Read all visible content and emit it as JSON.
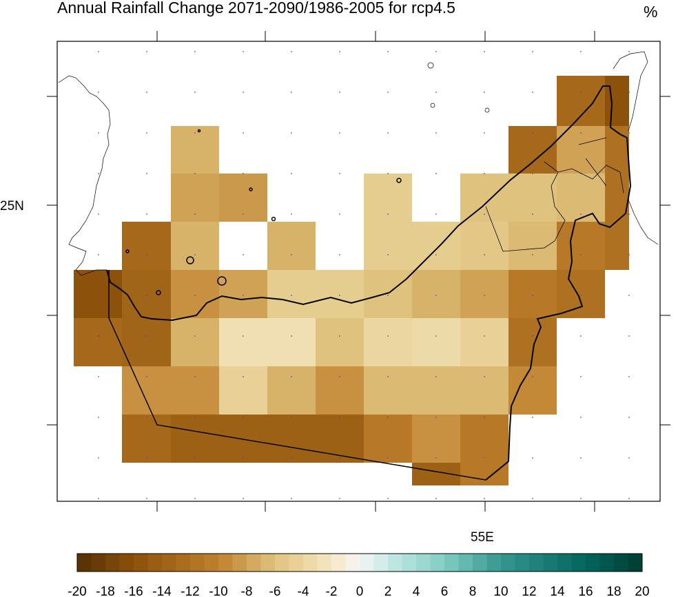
{
  "chart_data": {
    "type": "heatmap",
    "title": "Annual Rainfall Change 2071-2090/1986-2005 for rcp4.5",
    "units": "%",
    "axis_labels": {
      "lat": "25N",
      "lon": "55E"
    },
    "colorbar": {
      "min": -20,
      "max": 20,
      "tick_labels": [
        "-20",
        "-18",
        "-16",
        "-14",
        "-12",
        "-10",
        "-8",
        "-6",
        "-4",
        "-2",
        "0",
        "2",
        "4",
        "6",
        "8",
        "10",
        "12",
        "14",
        "16",
        "18",
        "20"
      ],
      "colors": [
        {
          "v": -20,
          "c": "#543005"
        },
        {
          "v": -16,
          "c": "#8c510a"
        },
        {
          "v": -10,
          "c": "#bf812d"
        },
        {
          "v": -6,
          "c": "#dfc27d"
        },
        {
          "v": -2,
          "c": "#f6e8c3"
        },
        {
          "v": 0,
          "c": "#f5f5f5"
        },
        {
          "v": 2,
          "c": "#c7eae5"
        },
        {
          "v": 6,
          "c": "#80cdc1"
        },
        {
          "v": 10,
          "c": "#35978f"
        },
        {
          "v": 16,
          "c": "#01665e"
        },
        {
          "v": 20,
          "c": "#003c30"
        }
      ]
    },
    "grid_values": [
      [
        null,
        null,
        null,
        null,
        null,
        null,
        null,
        null,
        null,
        null,
        -13,
        -16
      ],
      [
        null,
        null,
        -7,
        null,
        null,
        null,
        null,
        null,
        null,
        -13,
        -8,
        -12
      ],
      [
        null,
        null,
        -8,
        -8.5,
        null,
        null,
        -5,
        null,
        -6,
        -6,
        -6.5,
        -12
      ],
      [
        null,
        -13,
        -7,
        null,
        -7,
        null,
        -5,
        -5,
        -5.5,
        -6.5,
        -11,
        -12
      ],
      [
        -16,
        -13.5,
        -9,
        -8,
        -5,
        -5,
        -6,
        -7,
        -8,
        -11,
        -12,
        null
      ],
      [
        -13,
        -13.5,
        -7,
        -3,
        -3,
        -6,
        -4,
        -3.5,
        -4.5,
        -12,
        null,
        null
      ],
      [
        null,
        -9,
        -9,
        -4.5,
        -7,
        -9,
        -6.5,
        -6.5,
        -6.5,
        -9.5,
        null,
        null
      ],
      [
        null,
        -13,
        -14,
        -14,
        -14,
        -14,
        -11,
        -9,
        -11,
        null,
        null,
        null
      ],
      [
        null,
        null,
        null,
        null,
        null,
        null,
        null,
        -14,
        -11,
        null,
        null,
        null
      ]
    ]
  }
}
